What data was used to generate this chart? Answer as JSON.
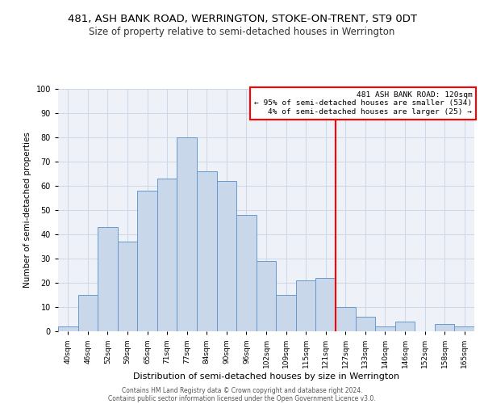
{
  "title": "481, ASH BANK ROAD, WERRINGTON, STOKE-ON-TRENT, ST9 0DT",
  "subtitle": "Size of property relative to semi-detached houses in Werrington",
  "xlabel": "Distribution of semi-detached houses by size in Werrington",
  "ylabel": "Number of semi-detached properties",
  "categories": [
    "40sqm",
    "46sqm",
    "52sqm",
    "59sqm",
    "65sqm",
    "71sqm",
    "77sqm",
    "84sqm",
    "90sqm",
    "96sqm",
    "102sqm",
    "109sqm",
    "115sqm",
    "121sqm",
    "127sqm",
    "133sqm",
    "140sqm",
    "146sqm",
    "152sqm",
    "158sqm",
    "165sqm"
  ],
  "values": [
    2,
    15,
    43,
    37,
    58,
    63,
    80,
    66,
    62,
    48,
    29,
    15,
    21,
    22,
    10,
    6,
    2,
    4,
    0,
    3,
    2
  ],
  "bar_color": "#c8d8ea",
  "bar_edge_color": "#6699cc",
  "vline_color": "red",
  "annotation_title": "481 ASH BANK ROAD: 120sqm",
  "annotation_line1": "← 95% of semi-detached houses are smaller (534)",
  "annotation_line2": "4% of semi-detached houses are larger (25) →",
  "ylim": [
    0,
    100
  ],
  "yticks": [
    0,
    10,
    20,
    30,
    40,
    50,
    60,
    70,
    80,
    90,
    100
  ],
  "background_color": "#eef2f8",
  "grid_color": "#d0d8e8",
  "footer1": "Contains HM Land Registry data © Crown copyright and database right 2024.",
  "footer2": "Contains public sector information licensed under the Open Government Licence v3.0.",
  "title_fontsize": 9.5,
  "subtitle_fontsize": 8.5,
  "vline_x_index": 13.5
}
